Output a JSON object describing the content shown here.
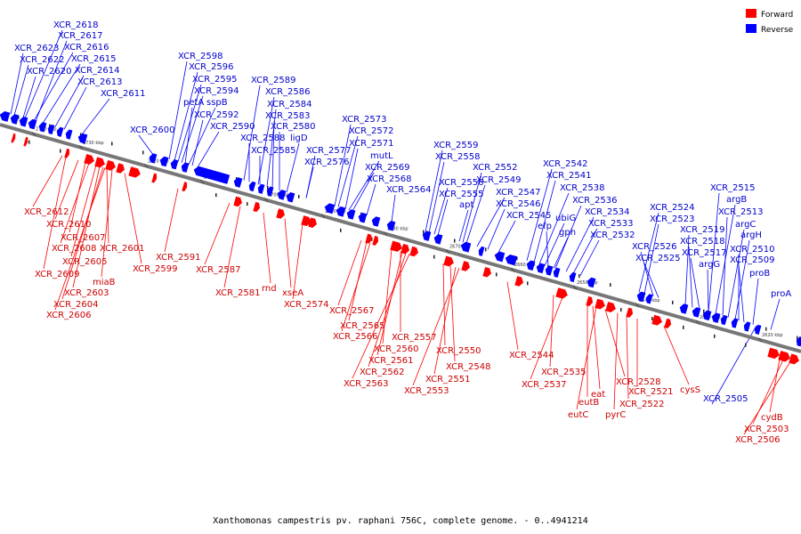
{
  "caption": "Xanthomonas campestris pv. raphani 756C, complete genome. - 0..4941214",
  "legend": [
    {
      "label": "Forward",
      "color": "#ff0000"
    },
    {
      "label": "Reverse",
      "color": "#0000ff"
    }
  ],
  "colors": {
    "forward": "#ff0000",
    "reverse": "#0000ff",
    "backbone": "#888888"
  },
  "ticks": [
    "2740 kbp",
    "2730 kbp",
    "2720 kbp",
    "2710 kbp",
    "2700 kbp",
    "2690 kbp",
    "2680 kbp",
    "2670 kbp",
    "2660 kbp",
    "2650 kbp",
    "2640 kbp",
    "2630 kbp",
    "2620 kbp"
  ],
  "reverse_labels": [
    "XCR_2618",
    "XCR_2617",
    "XCR_2623",
    "XCR_2616",
    "XCR_2622",
    "XCR_2615",
    "XCR_2620",
    "XCR_2614",
    "XCR_2613",
    "XCR_2611",
    "XCR_2600",
    "XCR_2598",
    "XCR_2596",
    "XCR_2595",
    "XCR_2594",
    "petA",
    "sspB",
    "XCR_2592",
    "XCR_2590",
    "XCR_2589",
    "XCR_2586",
    "XCR_2584",
    "XCR_2583",
    "XCR_2580",
    "ligD",
    "XCR_2588",
    "XCR_2585",
    "XCR_2577",
    "XCR_2576",
    "XCR_2573",
    "XCR_2572",
    "XCR_2571",
    "mutL",
    "XCR_2569",
    "XCR_2568",
    "XCR_2564",
    "XCR_2559",
    "XCR_2558",
    "XCR_2556",
    "XCR_2555",
    "apt",
    "XCR_2552",
    "XCR_2549",
    "XCR_2547",
    "XCR_2546",
    "XCR_2545",
    "XCR_2542",
    "XCR_2541",
    "XCR_2538",
    "ubiG",
    "efp",
    "gph",
    "XCR_2536",
    "XCR_2534",
    "XCR_2533",
    "XCR_2532",
    "XCR_2524",
    "XCR_2523",
    "XCR_2526",
    "XCR_2525",
    "XCR_2515",
    "argB",
    "XCR_2513",
    "argC",
    "XCR_2519",
    "argH",
    "XCR_2518",
    "XCR_2517",
    "XCR_2510",
    "argG",
    "XCR_2509",
    "proB",
    "proA",
    "XCR_2505"
  ],
  "forward_labels": [
    "XCR_2612",
    "XCR_2610",
    "XCR_2607",
    "XCR_2608",
    "XCR_2605",
    "XCR_2601",
    "XCR_2609",
    "XCR_2599",
    "miaB",
    "XCR_2603",
    "XCR_2604",
    "XCR_2606",
    "XCR_2591",
    "XCR_2587",
    "XCR_2581",
    "rnd",
    "xseA",
    "XCR_2574",
    "XCR_2567",
    "XCR_2565",
    "XCR_2566",
    "XCR_2560",
    "XCR_2557",
    "XCR_2561",
    "XCR_2562",
    "XCR_2563",
    "XCR_2550",
    "XCR_2548",
    "XCR_2551",
    "XCR_2553",
    "XCR_2544",
    "XCR_2535",
    "XCR_2537",
    "eutB",
    "eat",
    "eutC",
    "XCR_2528",
    "XCR_2522",
    "pyrC",
    "XCR_2521",
    "cysS",
    "cydB",
    "XCR_2503",
    "XCR_2506"
  ]
}
